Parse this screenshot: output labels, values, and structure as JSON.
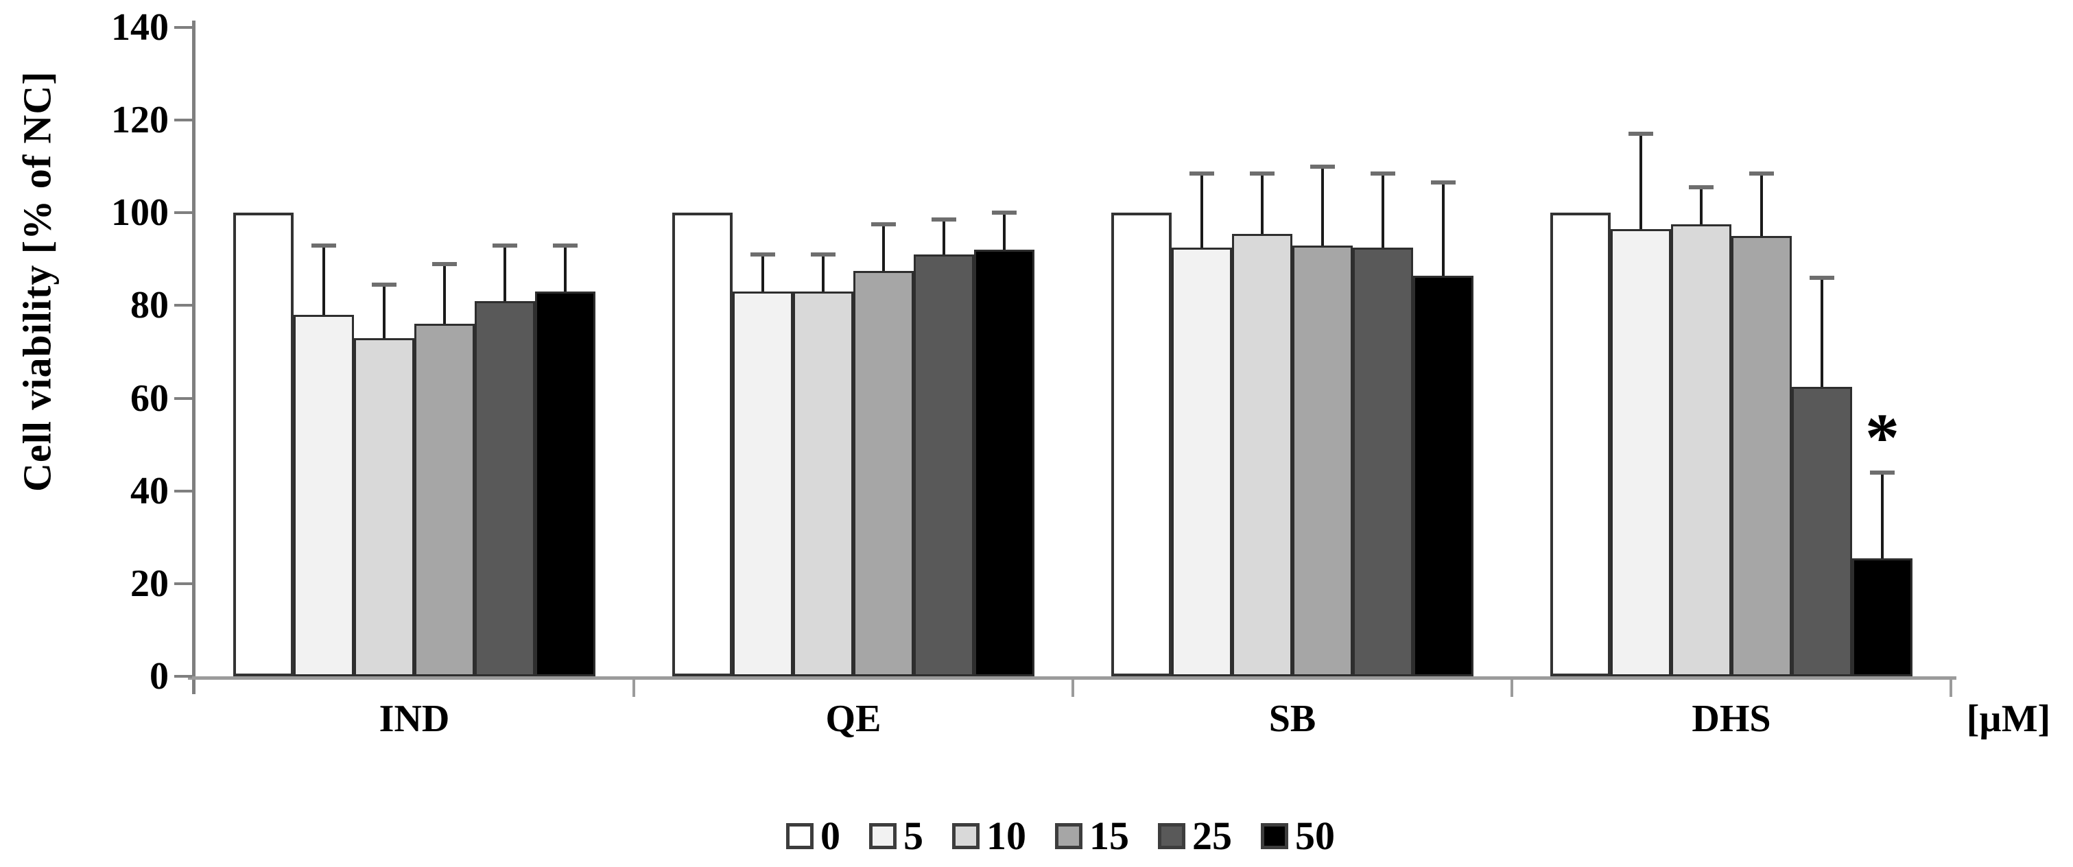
{
  "chart_data": {
    "type": "bar",
    "title": "",
    "ylabel": "Cell viability [% of NC]",
    "xlabel": "[µM]",
    "ylim": [
      0,
      140
    ],
    "yticks": [
      0,
      20,
      40,
      60,
      80,
      100,
      120,
      140
    ],
    "grid": false,
    "legend_position": "bottom",
    "categories": [
      "IND",
      "QE",
      "SB",
      "DHS"
    ],
    "series_unit": "µM",
    "series": [
      {
        "name": "0",
        "color": "#ffffff",
        "values": [
          100,
          100,
          100,
          100
        ],
        "errors": [
          0,
          0,
          0,
          0
        ]
      },
      {
        "name": "5",
        "color": "#f2f2f2",
        "values": [
          78,
          83,
          92.5,
          96.5
        ],
        "errors": [
          15,
          8,
          16,
          20.5
        ]
      },
      {
        "name": "10",
        "color": "#d9d9d9",
        "values": [
          73,
          83,
          95.5,
          97.5
        ],
        "errors": [
          11.5,
          8,
          13,
          8
        ]
      },
      {
        "name": "15",
        "color": "#a6a6a6",
        "values": [
          76,
          87.5,
          93,
          95
        ],
        "errors": [
          13,
          10,
          17,
          13.5
        ]
      },
      {
        "name": "25",
        "color": "#595959",
        "values": [
          81,
          91,
          92.5,
          62.5
        ],
        "errors": [
          12,
          7.5,
          16,
          23.5
        ]
      },
      {
        "name": "50",
        "color": "#000000",
        "values": [
          83,
          92,
          86.5,
          25.5
        ],
        "errors": [
          10,
          8,
          20,
          18.5
        ]
      }
    ],
    "annotations": [
      {
        "text": "*",
        "category": "DHS",
        "series": "50",
        "y_value": 53
      }
    ]
  }
}
